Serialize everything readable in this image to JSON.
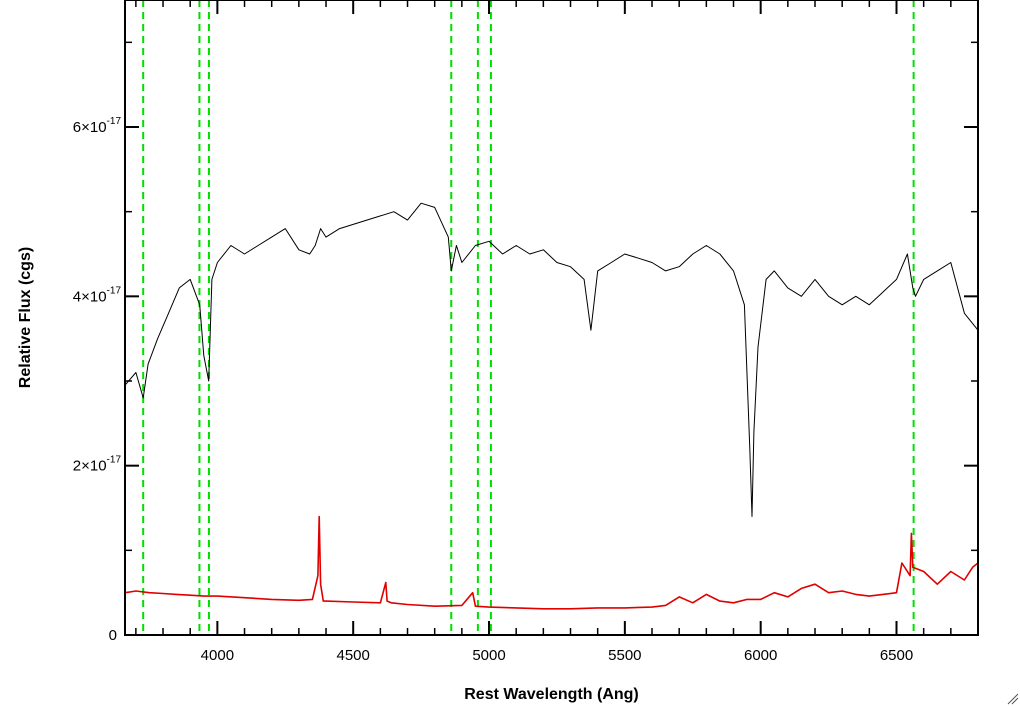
{
  "chart_data": {
    "type": "line",
    "xlabel": "Rest Wavelength (Ang)",
    "ylabel": "Relative Flux (cgs)",
    "xlim": [
      3660,
      6800
    ],
    "ylim": [
      0,
      7.5e-17
    ],
    "x_ticks": [
      4000,
      4500,
      5000,
      5500,
      6000,
      6500
    ],
    "x_tick_labels": [
      "4000",
      "4500",
      "5000",
      "5500",
      "6000",
      "6500"
    ],
    "y_ticks": [
      0,
      2e-17,
      4e-17,
      6e-17
    ],
    "y_tick_labels": [
      {
        "mantissa": "0",
        "exp": ""
      },
      {
        "mantissa": "2×10",
        "exp": "-17"
      },
      {
        "mantissa": "4×10",
        "exp": "-17"
      },
      {
        "mantissa": "6×10",
        "exp": "-17"
      }
    ],
    "grid": false,
    "series": [
      {
        "color": "#000000",
        "style": "solid",
        "x": [
          3660,
          3700,
          3727,
          3745,
          3780,
          3820,
          3860,
          3900,
          3935,
          3950,
          3968,
          3980,
          4000,
          4050,
          4100,
          4150,
          4200,
          4250,
          4300,
          4340,
          4360,
          4380,
          4400,
          4450,
          4500,
          4550,
          4600,
          4650,
          4700,
          4750,
          4800,
          4850,
          4861,
          4880,
          4900,
          4950,
          5000,
          5050,
          5100,
          5150,
          5200,
          5250,
          5300,
          5350,
          5375,
          5400,
          5450,
          5500,
          5550,
          5600,
          5650,
          5700,
          5750,
          5800,
          5850,
          5900,
          5940,
          5960,
          5968,
          5975,
          5990,
          6020,
          6050,
          6100,
          6150,
          6200,
          6250,
          6300,
          6350,
          6400,
          6450,
          6500,
          6540,
          6560,
          6570,
          6600,
          6650,
          6700,
          6750,
          6800
        ],
        "y": [
          2.95e-17,
          3.1e-17,
          2.8e-17,
          3.2e-17,
          3.5e-17,
          3.8e-17,
          4.1e-17,
          4.2e-17,
          3.9e-17,
          3.3e-17,
          3e-17,
          4.2e-17,
          4.4e-17,
          4.6e-17,
          4.5e-17,
          4.6e-17,
          4.7e-17,
          4.8e-17,
          4.55e-17,
          4.5e-17,
          4.6e-17,
          4.8e-17,
          4.7e-17,
          4.8e-17,
          4.85e-17,
          4.9e-17,
          4.95e-17,
          5e-17,
          4.9e-17,
          5.1e-17,
          5.05e-17,
          4.7e-17,
          4.3e-17,
          4.6e-17,
          4.4e-17,
          4.6e-17,
          4.65e-17,
          4.5e-17,
          4.6e-17,
          4.5e-17,
          4.55e-17,
          4.4e-17,
          4.35e-17,
          4.2e-17,
          3.6e-17,
          4.3e-17,
          4.4e-17,
          4.5e-17,
          4.45e-17,
          4.4e-17,
          4.3e-17,
          4.35e-17,
          4.5e-17,
          4.6e-17,
          4.5e-17,
          4.3e-17,
          3.9e-17,
          2.2e-17,
          1.4e-17,
          2.4e-17,
          3.4e-17,
          4.2e-17,
          4.3e-17,
          4.1e-17,
          4e-17,
          4.2e-17,
          4e-17,
          3.9e-17,
          4e-17,
          3.9e-17,
          4.05e-17,
          4.2e-17,
          4.5e-17,
          4.1e-17,
          4e-17,
          4.2e-17,
          4.3e-17,
          4.4e-17,
          3.8e-17,
          3.6e-17
        ]
      },
      {
        "color": "#e00000",
        "style": "solid",
        "x": [
          3660,
          3700,
          3750,
          3800,
          3850,
          3900,
          3950,
          4000,
          4100,
          4200,
          4300,
          4350,
          4370,
          4375,
          4380,
          4390,
          4400,
          4500,
          4600,
          4620,
          4625,
          4640,
          4700,
          4800,
          4900,
          4940,
          4950,
          5000,
          5100,
          5200,
          5300,
          5400,
          5500,
          5600,
          5650,
          5700,
          5750,
          5800,
          5850,
          5900,
          5950,
          6000,
          6050,
          6100,
          6150,
          6200,
          6250,
          6300,
          6350,
          6400,
          6450,
          6500,
          6520,
          6550,
          6555,
          6560,
          6600,
          6650,
          6700,
          6750,
          6780,
          6800
        ],
        "y": [
          5e-18,
          5.2e-18,
          5e-18,
          4.9e-18,
          4.8e-18,
          4.7e-18,
          4.6e-18,
          4.6e-18,
          4.4e-18,
          4.2e-18,
          4.1e-18,
          4.2e-18,
          7e-18,
          1.4e-17,
          6e-18,
          4e-18,
          4e-18,
          3.9e-18,
          3.8e-18,
          6.2e-18,
          4e-18,
          3.8e-18,
          3.6e-18,
          3.4e-18,
          3.5e-18,
          5e-18,
          3.4e-18,
          3.3e-18,
          3.2e-18,
          3.1e-18,
          3.1e-18,
          3.2e-18,
          3.2e-18,
          3.3e-18,
          3.5e-18,
          4.5e-18,
          3.8e-18,
          4.8e-18,
          4e-18,
          3.8e-18,
          4.2e-18,
          4.2e-18,
          5e-18,
          4.5e-18,
          5.5e-18,
          6e-18,
          5e-18,
          5.2e-18,
          4.8e-18,
          4.6e-18,
          4.8e-18,
          5e-18,
          8.5e-18,
          7e-18,
          1.2e-17,
          8e-18,
          7.5e-18,
          6e-18,
          7.5e-18,
          6.5e-18,
          8e-18,
          8.5e-18
        ]
      }
    ],
    "vertical_lines": [
      {
        "x": 3727,
        "color": "#00dd00",
        "style": "dashed"
      },
      {
        "x": 3934,
        "color": "#00dd00",
        "style": "dashed"
      },
      {
        "x": 3969,
        "color": "#00dd00",
        "style": "dashed"
      },
      {
        "x": 4861,
        "color": "#00dd00",
        "style": "dashed"
      },
      {
        "x": 4959,
        "color": "#00dd00",
        "style": "dashed"
      },
      {
        "x": 5007,
        "color": "#00dd00",
        "style": "dashed"
      },
      {
        "x": 6563,
        "color": "#00dd00",
        "style": "dashed"
      }
    ]
  }
}
